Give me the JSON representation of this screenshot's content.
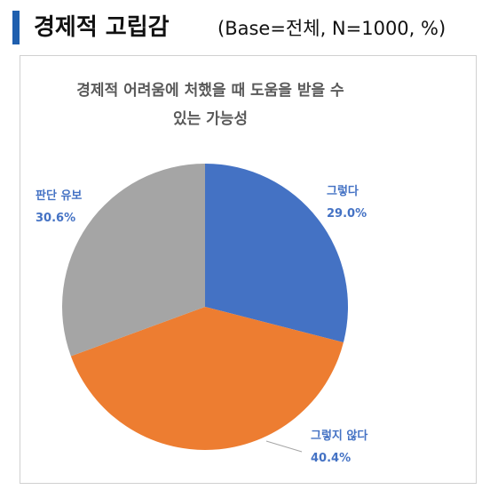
{
  "header": {
    "title": "경제적 고립감",
    "subtitle": "(Base=전체, N=1000, %)"
  },
  "chart_data": {
    "type": "pie",
    "title": "경제적 어려움에 처했을 때 도움을 받을 수 있는 가능성",
    "categories": [
      "그렇다",
      "그렇지 않다",
      "판단 유보"
    ],
    "values": [
      29.0,
      40.4,
      30.6
    ],
    "value_labels": [
      "29.0%",
      "40.4%",
      "30.6%"
    ],
    "colors": [
      "#4472c4",
      "#ed7d31",
      "#a5a5a5"
    ]
  }
}
